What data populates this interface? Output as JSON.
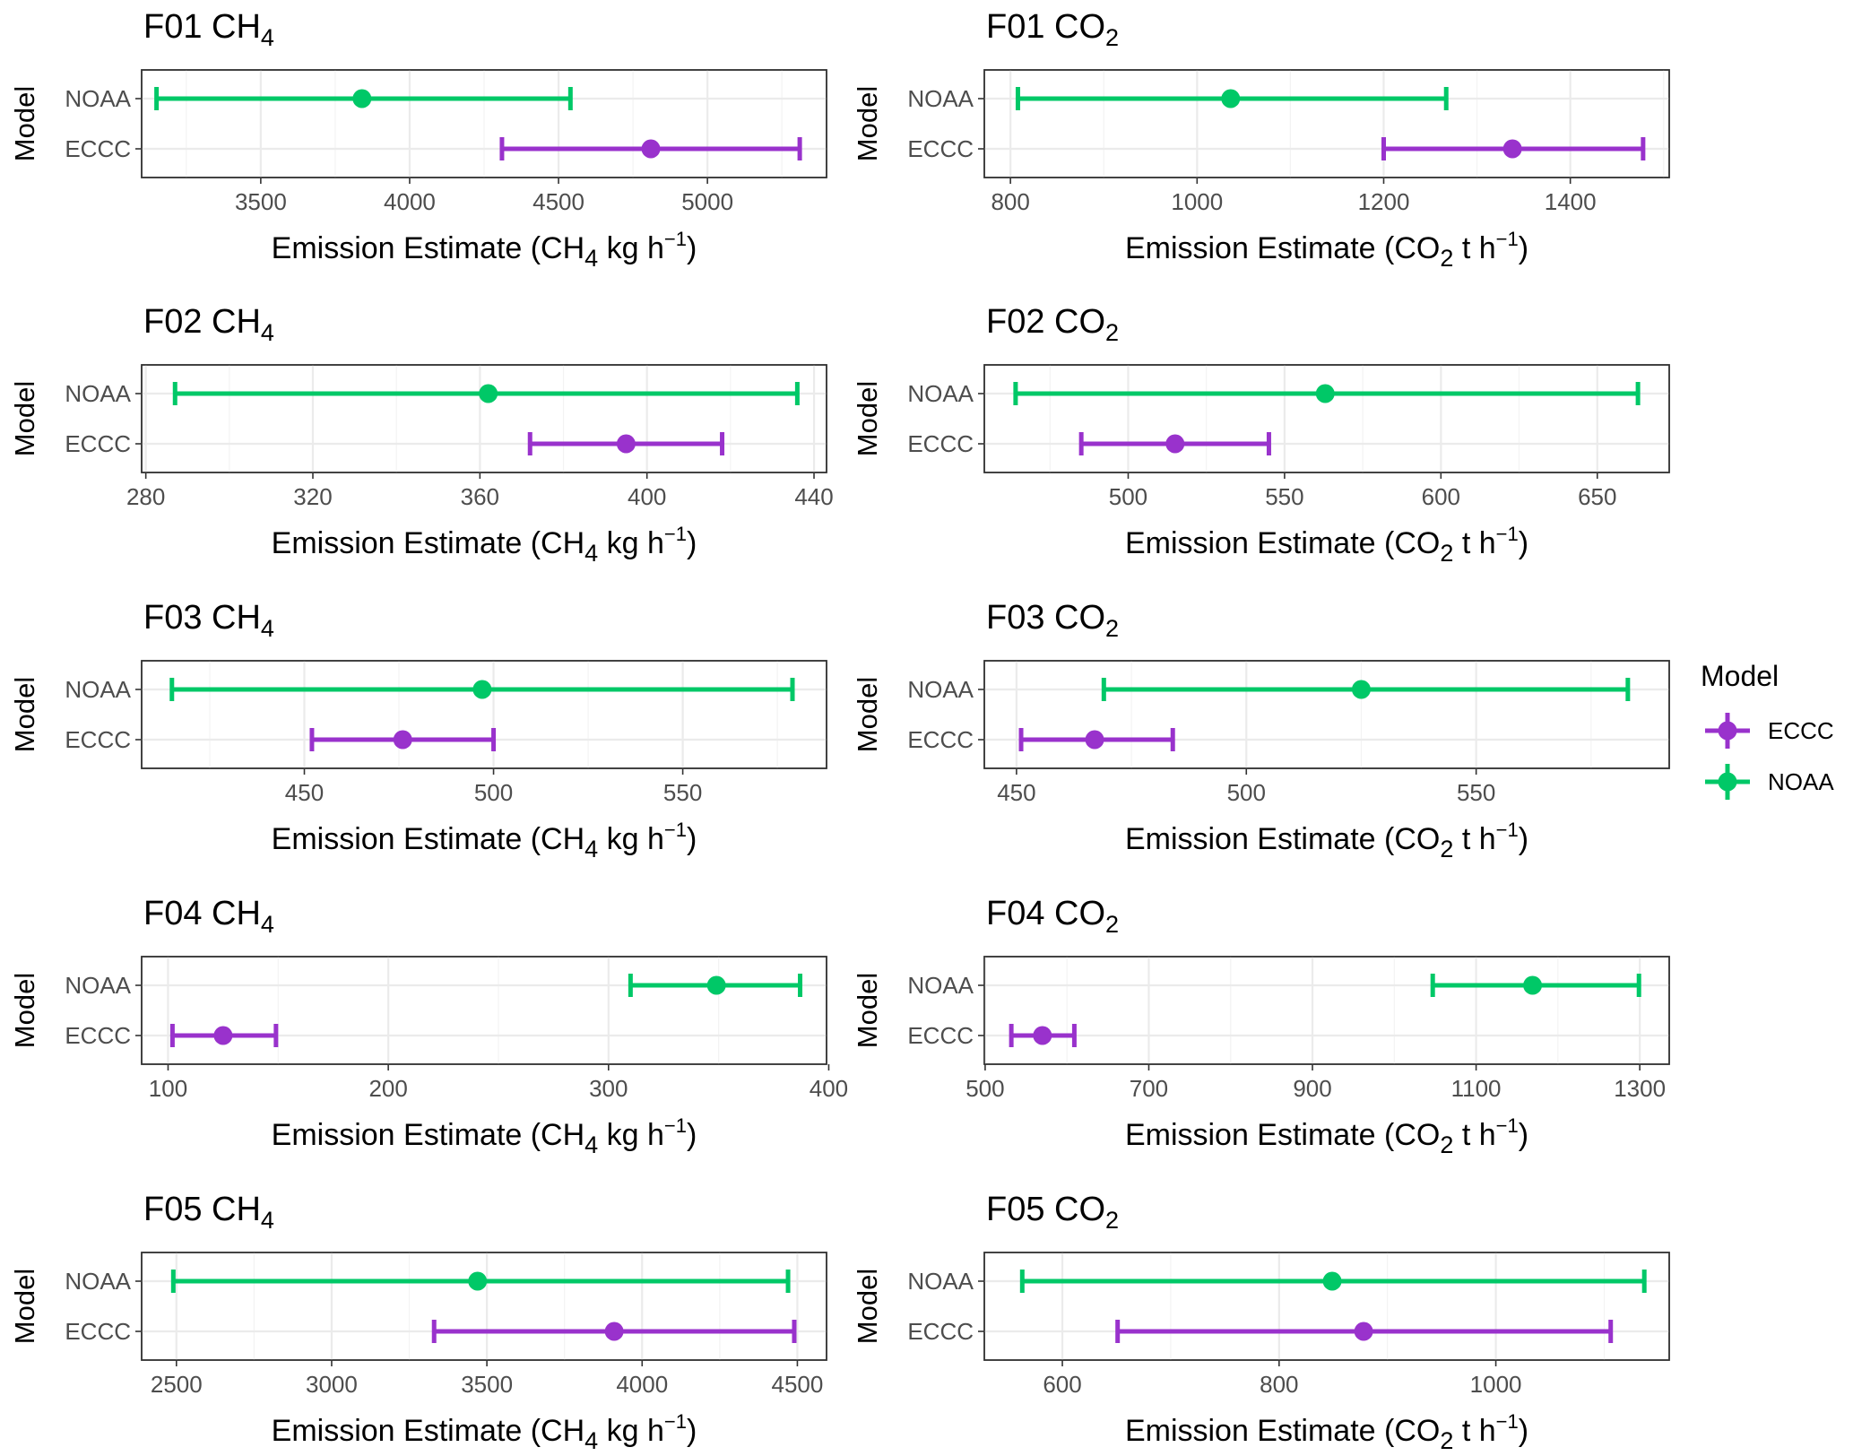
{
  "colors": {
    "ECCC": "#9932CC",
    "NOAA": "#00C867"
  },
  "legend": {
    "title": "Model",
    "placement": "right",
    "entries": [
      {
        "label": "ECCC",
        "color": "#9932CC"
      },
      {
        "label": "NOAA",
        "color": "#00C867"
      }
    ]
  },
  "chart_data": [
    {
      "type": "errorbar",
      "title": {
        "main": "F01 CH",
        "sub": "4"
      },
      "xlabel": {
        "pre": "Emission Estimate (CH",
        "sub": "4",
        "mid": " kg h",
        "sup": "−1",
        "post": ")"
      },
      "ylabel": "Model",
      "categories": [
        "ECCC",
        "NOAA"
      ],
      "grid": true,
      "xlim": [
        3100,
        5400
      ],
      "xticks": [
        3500,
        4000,
        4500,
        5000
      ],
      "series": [
        {
          "name": "NOAA",
          "center": 3840,
          "low": 3150,
          "high": 4540
        },
        {
          "name": "ECCC",
          "center": 4810,
          "low": 4310,
          "high": 5310
        }
      ]
    },
    {
      "type": "errorbar",
      "title": {
        "main": "F01 CO",
        "sub": "2"
      },
      "xlabel": {
        "pre": "Emission Estimate (CO",
        "sub": "2",
        "mid": " t h",
        "sup": "−1",
        "post": ")"
      },
      "ylabel": "Model",
      "categories": [
        "ECCC",
        "NOAA"
      ],
      "grid": true,
      "xlim": [
        772,
        1506
      ],
      "xticks": [
        800,
        1000,
        1200,
        1400
      ],
      "series": [
        {
          "name": "NOAA",
          "center": 1036,
          "low": 808,
          "high": 1267
        },
        {
          "name": "ECCC",
          "center": 1338,
          "low": 1200,
          "high": 1478
        }
      ]
    },
    {
      "type": "errorbar",
      "title": {
        "main": "F02 CH",
        "sub": "4"
      },
      "xlabel": {
        "pre": "Emission Estimate (CH",
        "sub": "4",
        "mid": " kg h",
        "sup": "−1",
        "post": ")"
      },
      "ylabel": "Model",
      "categories": [
        "ECCC",
        "NOAA"
      ],
      "grid": true,
      "xlim": [
        279,
        443
      ],
      "xticks": [
        280,
        320,
        360,
        400,
        440
      ],
      "series": [
        {
          "name": "NOAA",
          "center": 362,
          "low": 287,
          "high": 436
        },
        {
          "name": "ECCC",
          "center": 395,
          "low": 372,
          "high": 418
        }
      ]
    },
    {
      "type": "errorbar",
      "title": {
        "main": "F02 CO",
        "sub": "2"
      },
      "xlabel": {
        "pre": "Emission Estimate (CO",
        "sub": "2",
        "mid": " t h",
        "sup": "−1",
        "post": ")"
      },
      "ylabel": "Model",
      "categories": [
        "ECCC",
        "NOAA"
      ],
      "grid": true,
      "xlim": [
        454,
        673
      ],
      "xticks": [
        500,
        550,
        600,
        650
      ],
      "series": [
        {
          "name": "NOAA",
          "center": 563,
          "low": 464,
          "high": 663
        },
        {
          "name": "ECCC",
          "center": 515,
          "low": 485,
          "high": 545
        }
      ]
    },
    {
      "type": "errorbar",
      "title": {
        "main": "F03 CH",
        "sub": "4"
      },
      "xlabel": {
        "pre": "Emission Estimate (CH",
        "sub": "4",
        "mid": " kg h",
        "sup": "−1",
        "post": ")"
      },
      "ylabel": "Model",
      "categories": [
        "ECCC",
        "NOAA"
      ],
      "grid": true,
      "xlim": [
        407,
        588
      ],
      "xticks": [
        450,
        500,
        550
      ],
      "series": [
        {
          "name": "NOAA",
          "center": 497,
          "low": 415,
          "high": 579
        },
        {
          "name": "ECCC",
          "center": 476,
          "low": 452,
          "high": 500
        }
      ]
    },
    {
      "type": "errorbar",
      "title": {
        "main": "F03 CO",
        "sub": "2"
      },
      "xlabel": {
        "pre": "Emission Estimate (CO",
        "sub": "2",
        "mid": " t h",
        "sup": "−1",
        "post": ")"
      },
      "ylabel": "Model",
      "categories": [
        "ECCC",
        "NOAA"
      ],
      "grid": true,
      "xlim": [
        443,
        592
      ],
      "xticks": [
        450,
        500,
        550
      ],
      "series": [
        {
          "name": "NOAA",
          "center": 525,
          "low": 469,
          "high": 583
        },
        {
          "name": "ECCC",
          "center": 467,
          "low": 451,
          "high": 484
        }
      ]
    },
    {
      "type": "errorbar",
      "title": {
        "main": "F04 CH",
        "sub": "4"
      },
      "xlabel": {
        "pre": "Emission Estimate (CH",
        "sub": "4",
        "mid": " kg h",
        "sup": "−1",
        "post": ")"
      },
      "ylabel": "Model",
      "categories": [
        "ECCC",
        "NOAA"
      ],
      "grid": true,
      "xlim": [
        88,
        399
      ],
      "xticks": [
        100,
        200,
        300,
        400
      ],
      "series": [
        {
          "name": "NOAA",
          "center": 349,
          "low": 310,
          "high": 387
        },
        {
          "name": "ECCC",
          "center": 125,
          "low": 102,
          "high": 149
        }
      ]
    },
    {
      "type": "errorbar",
      "title": {
        "main": "F04 CO",
        "sub": "2"
      },
      "xlabel": {
        "pre": "Emission Estimate (CO",
        "sub": "2",
        "mid": " t h",
        "sup": "−1",
        "post": ")"
      },
      "ylabel": "Model",
      "categories": [
        "ECCC",
        "NOAA"
      ],
      "grid": true,
      "xlim": [
        499,
        1336
      ],
      "xticks": [
        500,
        700,
        900,
        1100,
        1300
      ],
      "series": [
        {
          "name": "NOAA",
          "center": 1169,
          "low": 1047,
          "high": 1299
        },
        {
          "name": "ECCC",
          "center": 570,
          "low": 532,
          "high": 609
        }
      ]
    },
    {
      "type": "errorbar",
      "title": {
        "main": "F05 CH",
        "sub": "4"
      },
      "xlabel": {
        "pre": "Emission Estimate (CH",
        "sub": "4",
        "mid": " kg h",
        "sup": "−1",
        "post": ")"
      },
      "ylabel": "Model",
      "categories": [
        "ECCC",
        "NOAA"
      ],
      "grid": true,
      "xlim": [
        2388,
        4594
      ],
      "xticks": [
        2500,
        3000,
        3500,
        4000,
        4500
      ],
      "series": [
        {
          "name": "NOAA",
          "center": 3470,
          "low": 2490,
          "high": 4470
        },
        {
          "name": "ECCC",
          "center": 3910,
          "low": 3330,
          "high": 4490
        }
      ]
    },
    {
      "type": "errorbar",
      "title": {
        "main": "F05 CO",
        "sub": "2"
      },
      "xlabel": {
        "pre": "Emission Estimate (CO",
        "sub": "2",
        "mid": " t h",
        "sup": "−1",
        "post": ")"
      },
      "ylabel": "Model",
      "categories": [
        "ECCC",
        "NOAA"
      ],
      "grid": true,
      "xlim": [
        528,
        1160
      ],
      "xticks": [
        600,
        800,
        1000
      ],
      "series": [
        {
          "name": "NOAA",
          "center": 849,
          "low": 563,
          "high": 1137
        },
        {
          "name": "ECCC",
          "center": 878,
          "low": 651,
          "high": 1106
        }
      ]
    }
  ]
}
